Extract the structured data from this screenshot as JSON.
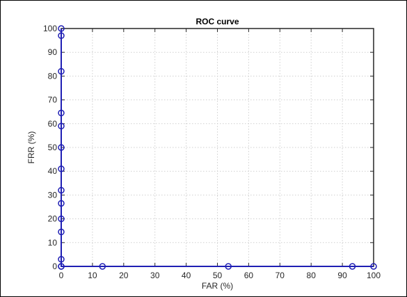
{
  "chart_data": {
    "type": "line",
    "title": "ROC curve",
    "xlabel": "FAR (%)",
    "ylabel": "FRR (%)",
    "xlim": [
      0,
      100
    ],
    "ylim": [
      0,
      100
    ],
    "xticks": [
      0,
      10,
      20,
      30,
      40,
      50,
      60,
      70,
      80,
      90,
      100
    ],
    "yticks": [
      0,
      10,
      20,
      30,
      40,
      50,
      60,
      70,
      80,
      90,
      100
    ],
    "grid": true,
    "line_color": "#1f1fb4",
    "series": [
      {
        "x": [
          0,
          0,
          0,
          0,
          0,
          0,
          0,
          0,
          0,
          0,
          0,
          0,
          0,
          0,
          13.2,
          53.5,
          93.2,
          100
        ],
        "y": [
          100,
          97,
          82,
          64.5,
          59,
          50,
          41,
          32,
          26.5,
          20,
          14.5,
          3,
          0,
          0,
          0,
          0,
          0,
          0
        ]
      }
    ]
  }
}
